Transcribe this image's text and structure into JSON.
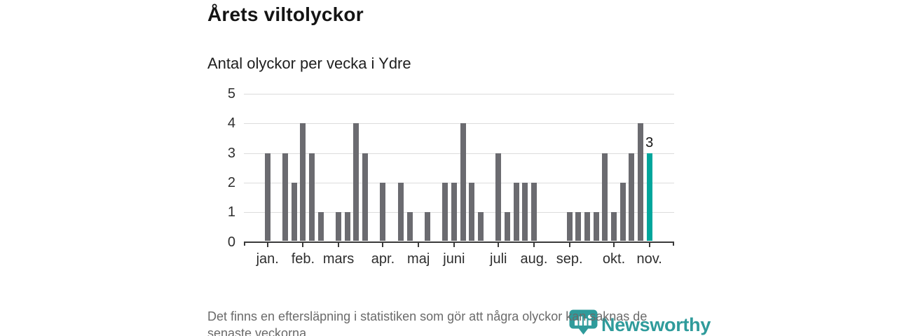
{
  "chart_data": {
    "type": "bar",
    "title": "Årets viltolyckor",
    "subtitle": "Antal olyckor per vecka i Ydre",
    "x_unit": "vecka",
    "weeks": [
      1,
      2,
      3,
      4,
      5,
      6,
      7,
      8,
      9,
      10,
      11,
      12,
      13,
      14,
      15,
      16,
      17,
      18,
      19,
      20,
      21,
      22,
      23,
      24,
      25,
      26,
      27,
      28,
      29,
      30,
      31,
      32,
      33,
      34,
      35,
      36,
      37,
      38,
      39,
      40,
      41,
      42,
      43,
      44
    ],
    "values": [
      3,
      0,
      3,
      2,
      4,
      3,
      1,
      0,
      1,
      1,
      4,
      3,
      0,
      2,
      0,
      2,
      1,
      0,
      1,
      0,
      2,
      2,
      4,
      2,
      1,
      0,
      3,
      1,
      2,
      2,
      2,
      0,
      0,
      0,
      1,
      1,
      1,
      1,
      3,
      1,
      2,
      3,
      4,
      3
    ],
    "highlight_week": 44,
    "highlight_value_label": "3",
    "month_ticks": [
      {
        "week": 1,
        "label": "jan."
      },
      {
        "week": 5,
        "label": "feb."
      },
      {
        "week": 9,
        "label": "mars"
      },
      {
        "week": 14,
        "label": "apr."
      },
      {
        "week": 18,
        "label": "maj"
      },
      {
        "week": 22,
        "label": "juni"
      },
      {
        "week": 27,
        "label": "juli"
      },
      {
        "week": 31,
        "label": "aug."
      },
      {
        "week": 35,
        "label": "sep."
      },
      {
        "week": 40,
        "label": "okt."
      },
      {
        "week": 44,
        "label": "nov."
      }
    ],
    "y_ticks": [
      0,
      1,
      2,
      3,
      4,
      5
    ],
    "ylim": [
      0,
      5
    ],
    "grid": "horizontal",
    "legend": "none",
    "colors": {
      "bar": "#6b6b70",
      "highlight": "#00a69c",
      "grid": "#dcdcdc",
      "axis": "#3a3a3a",
      "tick_label": "#2e2e2e"
    }
  },
  "footer": {
    "line1": "Det finns en eftersläpning i statistiken som gör att några olyckor kan saknas de",
    "line2": "senaste veckorna."
  },
  "logo": {
    "text": "Newsworthy",
    "color": "#2f9b9b",
    "icon": "newsworthy-pin-chart-icon"
  }
}
